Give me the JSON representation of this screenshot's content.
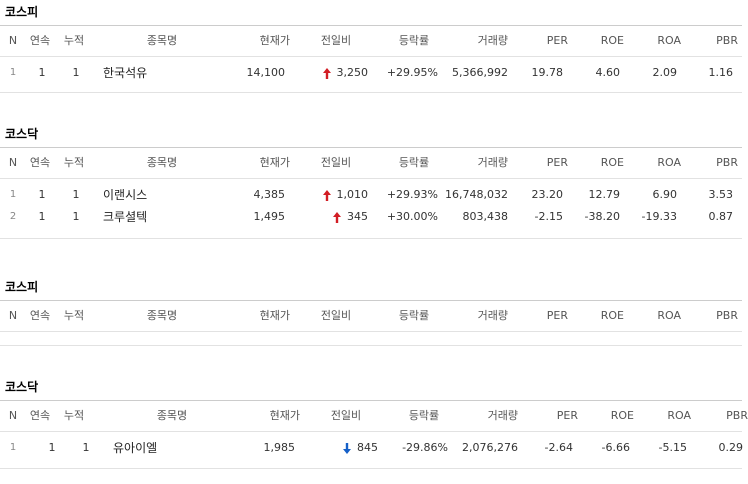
{
  "headers": [
    "N",
    "연속",
    "누적",
    "종목명",
    "현재가",
    "전일비",
    "등락률",
    "거래량",
    "PER",
    "ROE",
    "ROA",
    "PBR"
  ],
  "colors": {
    "up": "#d21d24",
    "down": "#1560c8"
  },
  "sections": [
    {
      "title": "코스피",
      "rows": [
        {
          "n": "1",
          "streak": "1",
          "cumulative": "1",
          "name": "한국석유",
          "price": "14,100",
          "direction": "up",
          "change": "3,250",
          "rate": "+29.95%",
          "volume": "5,366,992",
          "per": "19.78",
          "roe": "4.60",
          "roa": "2.09",
          "pbr": "1.16"
        }
      ]
    },
    {
      "title": "코스닥",
      "rows": [
        {
          "n": "1",
          "streak": "1",
          "cumulative": "1",
          "name": "이랜시스",
          "price": "4,385",
          "direction": "up",
          "change": "1,010",
          "rate": "+29.93%",
          "volume": "16,748,032",
          "per": "23.20",
          "roe": "12.79",
          "roa": "6.90",
          "pbr": "3.53"
        },
        {
          "n": "2",
          "streak": "1",
          "cumulative": "1",
          "name": "크루셜텍",
          "price": "1,495",
          "direction": "up",
          "change": "345",
          "rate": "+30.00%",
          "volume": "803,438",
          "per": "-2.15",
          "roe": "-38.20",
          "roa": "-19.33",
          "pbr": "0.87"
        }
      ]
    },
    {
      "title": "코스피",
      "rows": []
    },
    {
      "title": "코스닥",
      "rows": [
        {
          "n": "1",
          "streak": "1",
          "cumulative": "1",
          "name": "유아이엘",
          "price": "1,985",
          "direction": "down",
          "change": "845",
          "rate": "-29.86%",
          "volume": "2,076,276",
          "per": "-2.64",
          "roe": "-6.66",
          "roa": "-5.15",
          "pbr": "0.29"
        }
      ]
    }
  ]
}
